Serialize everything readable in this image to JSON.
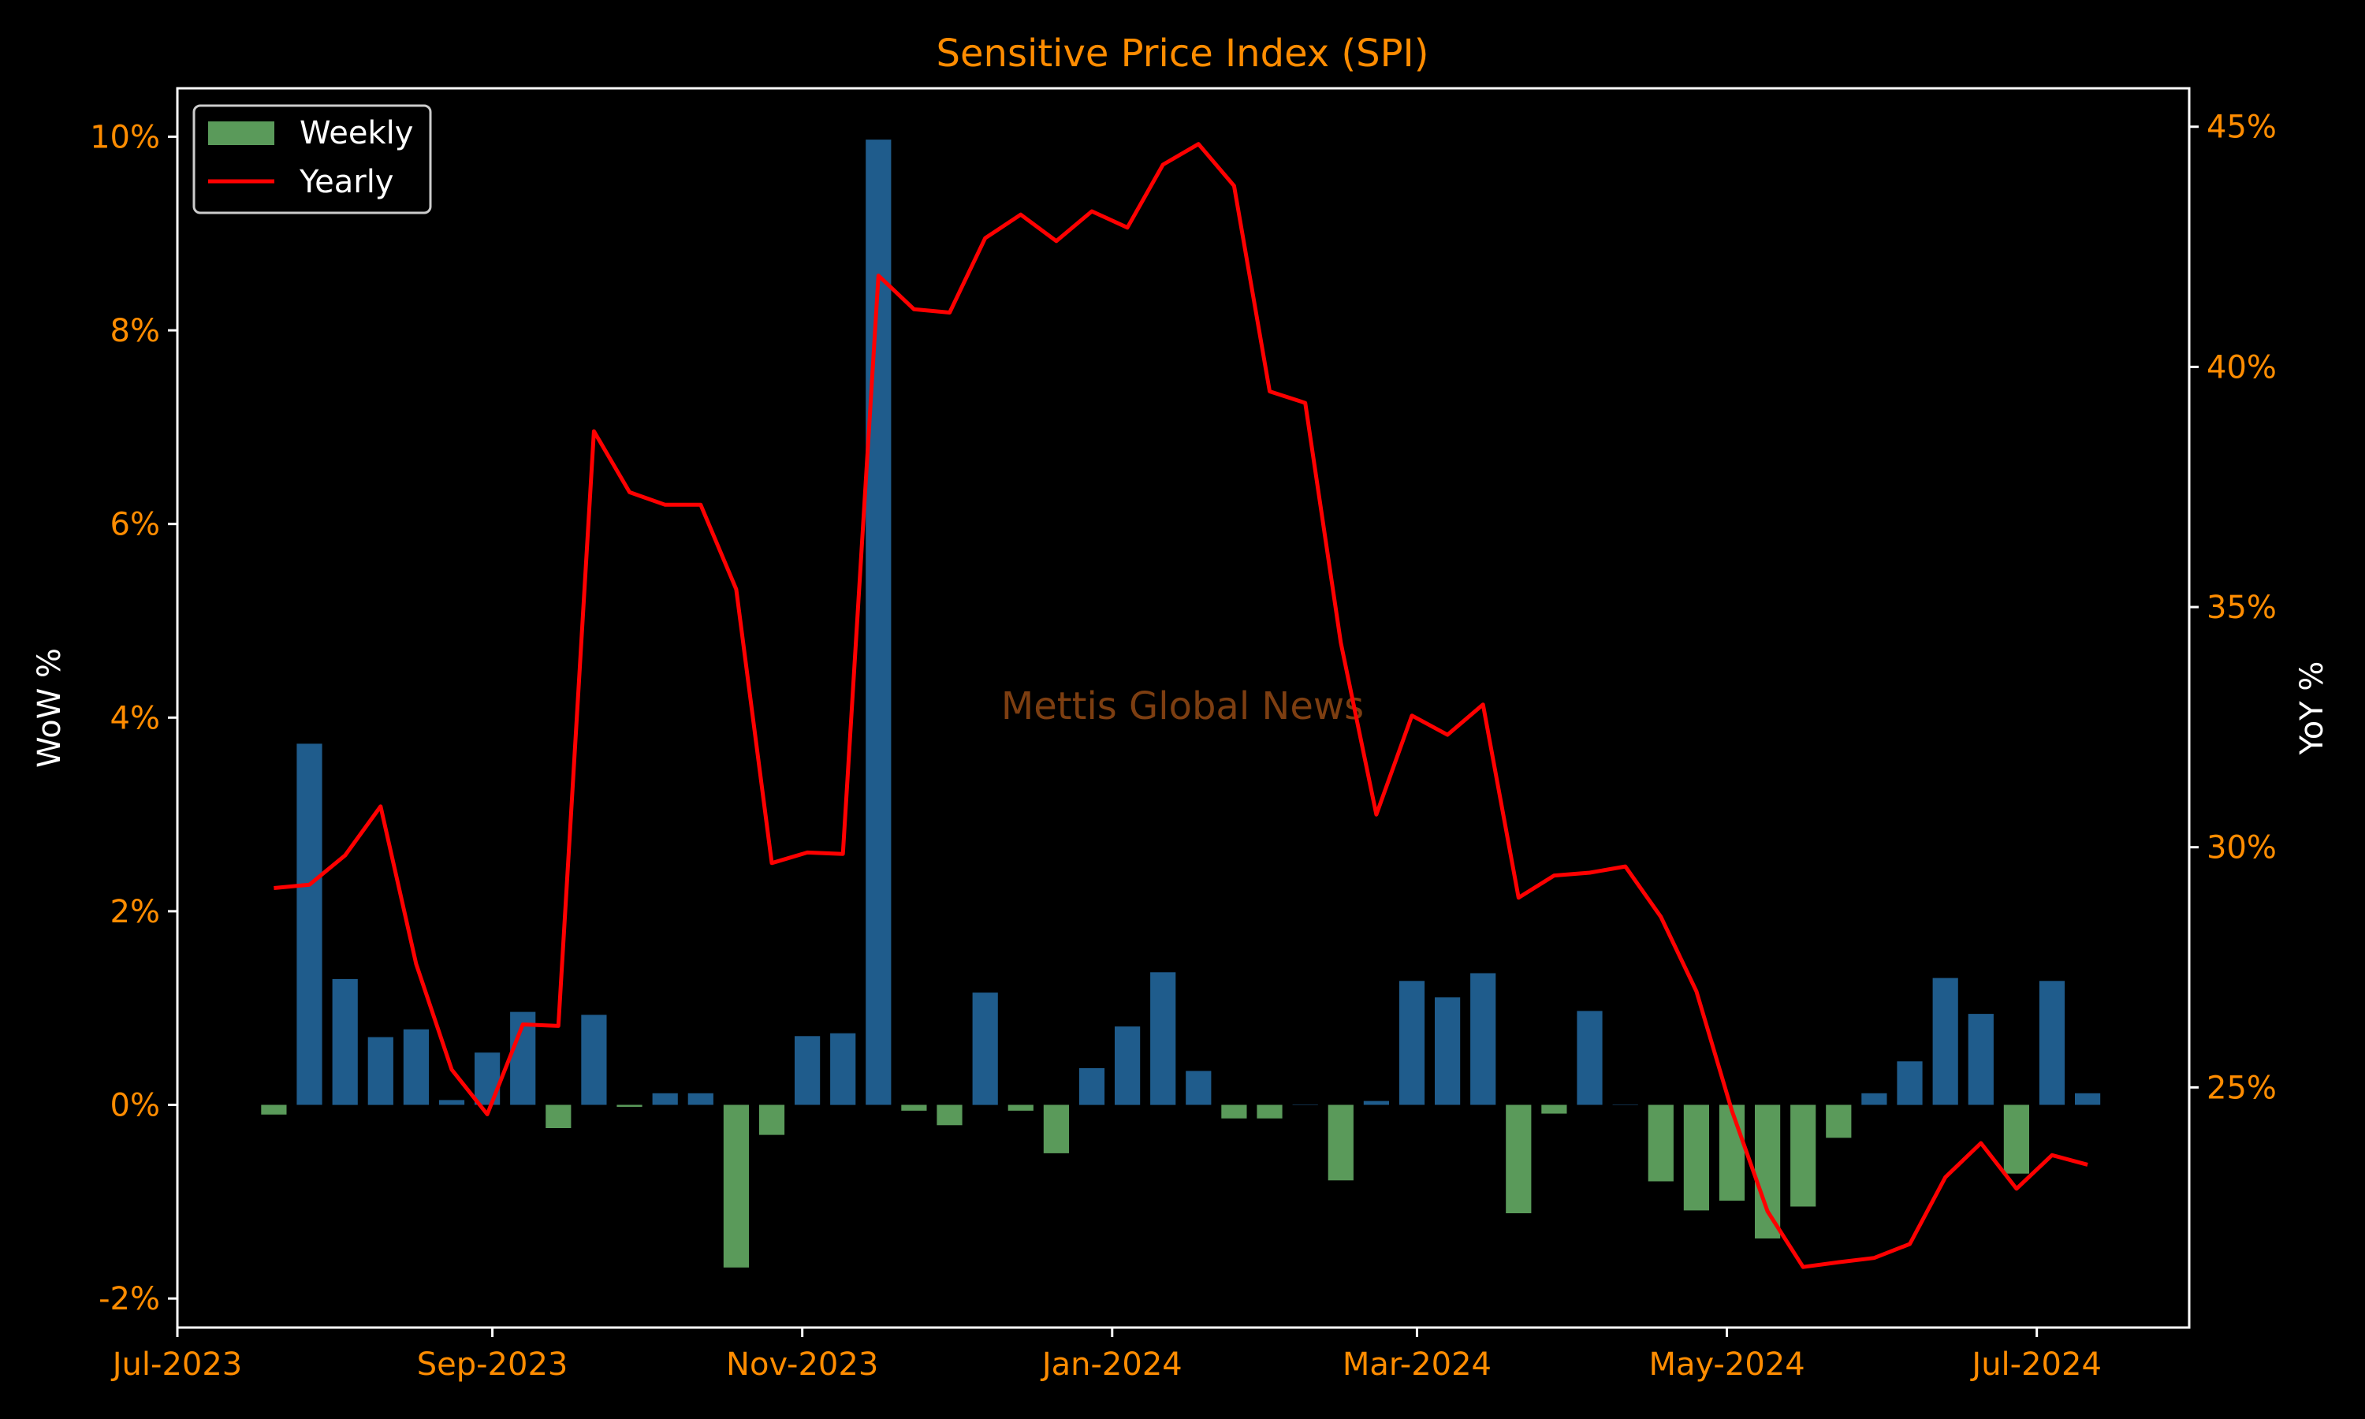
{
  "chart_data": {
    "type": "bar",
    "title": "Sensitive Price Index (SPI)",
    "watermark": "Mettis Global News",
    "y_left": {
      "label": "WoW %",
      "lim": [
        -2.3,
        10.5
      ],
      "ticks": [
        -2,
        0,
        2,
        4,
        6,
        8,
        10
      ],
      "tick_labels": [
        "-2%",
        "0%",
        "2%",
        "4%",
        "6%",
        "8%",
        "10%"
      ]
    },
    "y_right": {
      "label": "YoY %",
      "lim": [
        20.0,
        45.8
      ],
      "ticks": [
        25,
        30,
        35,
        40,
        45
      ],
      "tick_labels": [
        "25%",
        "30%",
        "35%",
        "40%",
        "45%"
      ]
    },
    "x_axis": {
      "lim": [
        "2023-07-01",
        "2024-07-31"
      ],
      "ticks": [
        "2023-07-01",
        "2023-09-01",
        "2023-11-01",
        "2024-01-01",
        "2024-03-01",
        "2024-05-01",
        "2024-07-01"
      ],
      "tick_labels": [
        "Jul-2023",
        "Sep-2023",
        "Nov-2023",
        "Jan-2024",
        "Mar-2024",
        "May-2024",
        "Jul-2024"
      ]
    },
    "legend": {
      "position": "top-left",
      "entries": [
        "Weekly",
        "Yearly"
      ]
    },
    "colors": {
      "positive_bar": "#1f5c8c",
      "negative_bar": "#5a9a5a",
      "line": "#ff0000",
      "tick": "#ff8c00",
      "frame": "#ffffff"
    },
    "dates": [
      "2023-07-20",
      "2023-07-27",
      "2023-08-03",
      "2023-08-10",
      "2023-08-17",
      "2023-08-24",
      "2023-08-31",
      "2023-09-07",
      "2023-09-14",
      "2023-09-21",
      "2023-09-28",
      "2023-10-05",
      "2023-10-12",
      "2023-10-19",
      "2023-10-26",
      "2023-11-02",
      "2023-11-09",
      "2023-11-16",
      "2023-11-23",
      "2023-11-30",
      "2023-12-07",
      "2023-12-14",
      "2023-12-21",
      "2023-12-28",
      "2024-01-04",
      "2024-01-11",
      "2024-01-18",
      "2024-01-25",
      "2024-02-01",
      "2024-02-08",
      "2024-02-15",
      "2024-02-22",
      "2024-02-29",
      "2024-03-07",
      "2024-03-14",
      "2024-03-21",
      "2024-03-28",
      "2024-04-04",
      "2024-04-11",
      "2024-04-18",
      "2024-04-25",
      "2024-05-02",
      "2024-05-09",
      "2024-05-16",
      "2024-05-23",
      "2024-05-30",
      "2024-06-06",
      "2024-06-13",
      "2024-06-20",
      "2024-06-27",
      "2024-07-04",
      "2024-07-11"
    ],
    "series": [
      {
        "name": "Weekly",
        "type": "bar",
        "axis": "left",
        "values": [
          -0.1,
          3.73,
          1.3,
          0.7,
          0.78,
          0.05,
          0.54,
          0.96,
          -0.24,
          0.93,
          -0.02,
          0.12,
          0.12,
          -1.68,
          -0.31,
          0.71,
          0.74,
          9.97,
          -0.06,
          -0.21,
          1.16,
          -0.06,
          -0.5,
          0.38,
          0.81,
          1.37,
          0.35,
          -0.14,
          -0.14,
          0.0,
          -0.78,
          0.04,
          1.28,
          1.11,
          1.36,
          -1.12,
          -0.09,
          0.97,
          0.0,
          -0.79,
          -1.09,
          -0.99,
          -1.38,
          -1.05,
          -0.34,
          0.12,
          0.45,
          1.31,
          0.94,
          -0.71,
          1.28,
          0.12
        ]
      },
      {
        "name": "Yearly",
        "type": "line",
        "axis": "right",
        "values": [
          29.15,
          29.22,
          29.83,
          30.85,
          27.57,
          25.37,
          24.44,
          26.31,
          26.28,
          38.66,
          37.39,
          37.13,
          37.13,
          35.37,
          29.67,
          29.89,
          29.86,
          41.9,
          41.2,
          41.13,
          42.68,
          43.17,
          42.62,
          43.24,
          42.9,
          44.21,
          44.64,
          43.77,
          39.49,
          39.25,
          34.26,
          30.68,
          32.74,
          32.34,
          32.97,
          28.95,
          29.41,
          29.47,
          29.6,
          28.55,
          27.0,
          24.51,
          22.42,
          21.26,
          21.36,
          21.45,
          21.74,
          23.13,
          23.84,
          22.89,
          23.59,
          23.39
        ]
      }
    ]
  }
}
